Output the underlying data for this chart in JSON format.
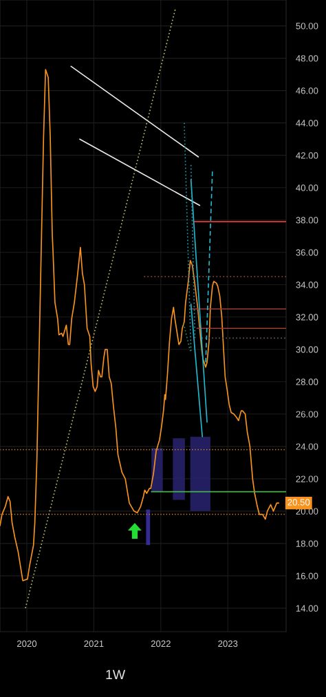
{
  "chart_data": {
    "type": "line",
    "subtitle": "1W",
    "xlim": [
      2019.6,
      2023.87
    ],
    "ylim": [
      12.55,
      51.6
    ],
    "xticks": [
      2020,
      2021,
      2022,
      2023
    ],
    "yticks": [
      {
        "value": 14,
        "label": "14.00"
      },
      {
        "value": 16,
        "label": "16.00"
      },
      {
        "value": 18,
        "label": "18.00"
      },
      {
        "value": 20,
        "label": "20.00"
      },
      {
        "value": 22,
        "label": "22.00"
      },
      {
        "value": 24,
        "label": "24.00"
      },
      {
        "value": 26,
        "label": "26.00"
      },
      {
        "value": 28,
        "label": "28.00"
      },
      {
        "value": 30,
        "label": "30.00"
      },
      {
        "value": 32,
        "label": "32.00"
      },
      {
        "value": 34,
        "label": "34.00"
      },
      {
        "value": 36,
        "label": "36.00"
      },
      {
        "value": 38,
        "label": "38.00"
      },
      {
        "value": 40,
        "label": "40.00"
      },
      {
        "value": 42,
        "label": "42.00"
      },
      {
        "value": 44,
        "label": "44.00"
      },
      {
        "value": 46,
        "label": "46.00"
      },
      {
        "value": 48,
        "label": "48.00"
      },
      {
        "value": 50,
        "label": "50.00"
      }
    ],
    "grid": true,
    "series": [
      {
        "color": "#f7931e",
        "x": [
          2019.6,
          2019.63,
          2019.68,
          2019.72,
          2019.75,
          2019.78,
          2019.82,
          2019.87,
          2019.94,
          2020.01,
          2020.04,
          2020.1,
          2020.12,
          2020.15,
          2020.18,
          2020.22,
          2020.25,
          2020.28,
          2020.32,
          2020.35,
          2020.38,
          2020.39,
          2020.42,
          2020.46,
          2020.48,
          2020.52,
          2020.54,
          2020.59,
          2020.62,
          2020.64,
          2020.67,
          2020.71,
          2020.76,
          2020.8,
          2020.83,
          2020.86,
          2020.9,
          2020.94,
          2020.96,
          2020.99,
          2021.02,
          2021.05,
          2021.07,
          2021.1,
          2021.12,
          2021.15,
          2021.17,
          2021.2,
          2021.23,
          2021.26,
          2021.29,
          2021.33,
          2021.36,
          2021.42,
          2021.47,
          2021.53,
          2021.6,
          2021.65,
          2021.7,
          2021.74,
          2021.76,
          2021.79,
          2021.83,
          2021.85,
          2021.89,
          2021.93,
          2021.98,
          2022.01,
          2022.04,
          2022.06,
          2022.07,
          2022.1,
          2022.13,
          2022.16,
          2022.19,
          2022.21,
          2022.24,
          2022.27,
          2022.3,
          2022.32,
          2022.35,
          2022.37,
          2022.41,
          2022.44,
          2022.47,
          2022.5,
          2022.55,
          2022.58,
          2022.61,
          2022.63,
          2022.67,
          2022.69,
          2022.72,
          2022.74,
          2022.77,
          2022.79,
          2022.83,
          2022.85,
          2022.88,
          2022.91,
          2022.93,
          2022.96,
          2022.99,
          2023.02,
          2023.05,
          2023.09,
          2023.13,
          2023.16,
          2023.2,
          2023.22,
          2023.26,
          2023.29,
          2023.33,
          2023.37,
          2023.4,
          2023.44,
          2023.47,
          2023.52,
          2023.56,
          2023.59,
          2023.64,
          2023.68,
          2023.73,
          2023.76
        ],
        "values": [
          19.1,
          19.8,
          20.3,
          20.9,
          20.6,
          19.3,
          18.4,
          17.5,
          15.7,
          15.8,
          16.6,
          17.9,
          19.3,
          23.1,
          29.1,
          37.1,
          43.1,
          47.3,
          46.8,
          43.1,
          37.1,
          36.2,
          32.9,
          31.9,
          30.9,
          31.0,
          30.8,
          31.5,
          30.3,
          30.3,
          31.9,
          32.9,
          34.7,
          36.3,
          34.7,
          34.0,
          31.3,
          30.8,
          29.1,
          27.7,
          27.4,
          27.7,
          28.7,
          28.3,
          28.3,
          29.5,
          30.0,
          30.0,
          28.3,
          27.9,
          26.6,
          25.1,
          23.5,
          22.4,
          22.0,
          20.5,
          20.0,
          19.9,
          20.3,
          20.9,
          21.3,
          21.1,
          21.4,
          21.4,
          22.3,
          23.7,
          24.4,
          25.2,
          26.2,
          27.2,
          26.9,
          28.5,
          30.5,
          31.9,
          32.6,
          31.9,
          31.1,
          30.3,
          30.5,
          31.3,
          31.7,
          32.9,
          34.2,
          35.5,
          35.2,
          34.3,
          32.6,
          31.3,
          30.0,
          29.4,
          28.9,
          29.2,
          30.5,
          32.6,
          33.9,
          34.2,
          34.1,
          33.9,
          33.3,
          32.0,
          30.5,
          28.3,
          27.5,
          26.6,
          26.1,
          26.0,
          25.8,
          25.6,
          26.2,
          26.2,
          26.0,
          24.9,
          24.0,
          22.0,
          21.1,
          20.3,
          19.8,
          19.8,
          19.5,
          20.0,
          20.4,
          20.0,
          20.5,
          20.5
        ]
      },
      {
        "color": "#27216a",
        "x": [
          2021.86,
          2022.03
        ],
        "values": [
          null,
          null
        ],
        "lower": [
          21.2,
          21.2
        ],
        "upper": [
          23.9,
          23.9
        ]
      },
      {
        "color": "#27216a",
        "x": [
          2022.18,
          2022.36
        ],
        "values": [
          null,
          null
        ],
        "lower": [
          20.7,
          20.7
        ],
        "upper": [
          24.5,
          24.5
        ]
      },
      {
        "color": "#27216a",
        "x": [
          2022.44,
          2022.74
        ],
        "values": [
          null,
          null
        ],
        "lower": [
          20.0,
          20.0
        ],
        "upper": [
          24.6,
          24.6
        ]
      },
      {
        "color": "#3a2fa0",
        "x": [
          2021.78,
          2021.84
        ],
        "values": [
          null,
          null
        ],
        "lower": [
          17.9,
          17.9
        ],
        "upper": [
          20.1,
          20.1
        ]
      },
      {
        "color": "#e53935",
        "x": [
          2022.5,
          2023.87
        ],
        "values": [
          37.9,
          37.9
        ]
      },
      {
        "color": "#a04a40",
        "line_style": "dotted",
        "x": [
          2021.75,
          2023.87
        ],
        "values": [
          34.5,
          34.5
        ]
      },
      {
        "color": "#9c3b30",
        "x": [
          2022.45,
          2023.87
        ],
        "values": [
          32.5,
          32.5
        ]
      },
      {
        "color": "#9c3b30",
        "x": [
          2022.54,
          2023.87
        ],
        "values": [
          31.3,
          31.3
        ]
      },
      {
        "color": "#6e5a55",
        "line_style": "dotted",
        "x": [
          2022.61,
          2023.87
        ],
        "values": [
          30.7,
          30.7
        ]
      },
      {
        "color": "#4caf50",
        "x": [
          2021.86,
          2023.87
        ],
        "values": [
          21.2,
          21.2
        ]
      },
      {
        "color": "#e8e8e8",
        "x": [
          2020.66,
          2022.56
        ],
        "values": [
          47.5,
          41.9
        ]
      },
      {
        "color": "#e8e8e8",
        "x": [
          2020.79,
          2022.58
        ],
        "values": [
          43.0,
          38.9
        ]
      },
      {
        "color": "#b8c46e",
        "line_style": "dotted",
        "x": [
          2019.98,
          2022.22
        ],
        "values": [
          14.0,
          51.1
        ]
      },
      {
        "color": "#22b8cf",
        "x": [
          2022.45,
          2022.69
        ],
        "values": [
          40.5,
          25.5
        ]
      },
      {
        "color": "#22b8cf",
        "x": [
          2022.45,
          2022.62
        ],
        "values": [
          32.8,
          24.6
        ]
      },
      {
        "color": "#22b8cf",
        "line_style": "dashed",
        "x": [
          2022.67,
          2022.77
        ],
        "values": [
          29.2,
          41.0
        ]
      },
      {
        "color": "#1f9fb0",
        "line_style": "dotted",
        "x": [
          2022.35,
          2022.45
        ],
        "values": [
          44.0,
          29.9
        ]
      },
      {
        "color": "#1f9fb0",
        "line_style": "dotted",
        "x": [
          2022.45,
          2022.51
        ],
        "values": [
          41.4,
          30.6
        ]
      },
      {
        "color": "#2f8f6a",
        "line_style": "dotted",
        "x": [
          2022.34,
          2022.44
        ],
        "values": [
          31.6,
          29.9
        ]
      }
    ],
    "ref_lines": [
      {
        "axis": "y",
        "value": 23.8,
        "color": "#d9822b",
        "line_style": "dotted"
      },
      {
        "axis": "y",
        "value": 19.8,
        "color": "#d9822b",
        "line_style": "dotted"
      }
    ],
    "annotations": [
      {
        "text": "20.50",
        "x": 2023.76,
        "y": 20.5
      }
    ]
  }
}
